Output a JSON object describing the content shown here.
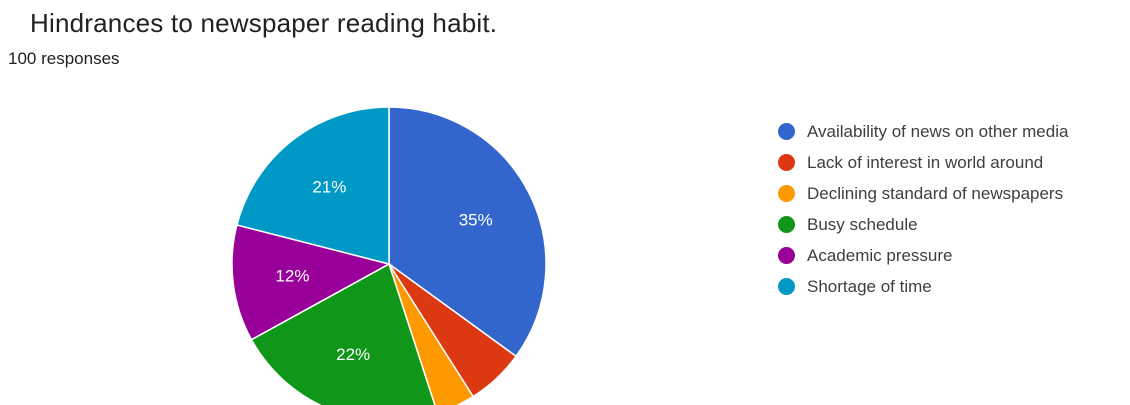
{
  "form": {
    "title": "Hindrances to newspaper reading habit.",
    "responses": "100 responses"
  },
  "chart_data": {
    "type": "pie",
    "title": "Hindrances to newspaper reading habit.",
    "total_responses": 100,
    "legend_position": "right",
    "categories": [
      "Availability of news on other media",
      "Lack of interest in world around",
      "Declining standard of newspapers",
      "Busy schedule",
      "Academic pressure",
      "Shortage of time"
    ],
    "values": [
      35,
      6,
      4,
      22,
      12,
      21
    ],
    "labels": [
      "35%",
      "",
      "",
      "22%",
      "12%",
      "21%"
    ],
    "colors": [
      "#3366cc",
      "#dc3912",
      "#ff9900",
      "#109618",
      "#990099",
      "#0099c6"
    ],
    "start_angle_deg": 90,
    "direction": "clockwise"
  }
}
